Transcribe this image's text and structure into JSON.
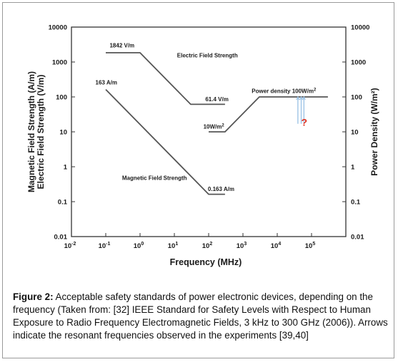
{
  "chart_data": {
    "type": "line",
    "x_scale": "log",
    "y_scale": "log",
    "xlim": [
      0.01,
      1000000
    ],
    "ylim": [
      0.01,
      10000
    ],
    "right_ylim": [
      0.01,
      10000
    ],
    "xlabel": "Frequency (MHz)",
    "ylabel_lines": [
      "Magnetic Field Strength (A/m)",
      "Electric Field Strength (V/m)"
    ],
    "ylabel_right": "Power Density (W/m²)",
    "x_ticks": [
      {
        "value": 0.01,
        "base": "10",
        "exp": "-2"
      },
      {
        "value": 0.1,
        "base": "10",
        "exp": "-1"
      },
      {
        "value": 1,
        "base": "10",
        "exp": "0"
      },
      {
        "value": 10,
        "base": "10",
        "exp": "1"
      },
      {
        "value": 100,
        "base": "10",
        "exp": "2"
      },
      {
        "value": 1000,
        "base": "10",
        "exp": "3"
      },
      {
        "value": 10000,
        "base": "10",
        "exp": "4"
      },
      {
        "value": 100000,
        "base": "10",
        "exp": "5"
      }
    ],
    "y_ticks": [
      {
        "value": 10000,
        "label": "10000"
      },
      {
        "value": 1000,
        "label": "1000"
      },
      {
        "value": 100,
        "label": "100"
      },
      {
        "value": 10,
        "label": "10"
      },
      {
        "value": 1,
        "label": "1"
      },
      {
        "value": 0.1,
        "label": "0.1"
      },
      {
        "value": 0.01,
        "label": "0.01"
      }
    ],
    "series": [
      {
        "name": "Electric Field Strength",
        "points": [
          [
            0.1,
            1842
          ],
          [
            1,
            1842
          ],
          [
            30,
            61.4
          ],
          [
            300,
            61.4
          ]
        ]
      },
      {
        "name": "Magnetic Field Strength",
        "points": [
          [
            0.1,
            163
          ],
          [
            100,
            0.163
          ],
          [
            300,
            0.163
          ]
        ]
      },
      {
        "points": [
          [
            100,
            10
          ],
          [
            300,
            10
          ],
          [
            3000,
            100
          ],
          [
            300000,
            100
          ]
        ]
      }
    ],
    "annotations": [
      {
        "text": "1842 V/m",
        "x": 0.13,
        "y": 2600
      },
      {
        "text": "Electric Field Strength",
        "x": 12,
        "y": 1350
      },
      {
        "text": "61.4 V/m",
        "x": 80,
        "y": 75
      },
      {
        "text": "163 A/m",
        "x": 0.05,
        "y": 230
      },
      {
        "text": "Power density 100W/m²",
        "x": 1800,
        "y": 130
      },
      {
        "text": "10W/m²",
        "x": 70,
        "y": 12.5
      },
      {
        "text": "Magnetic Field Strength",
        "x": 0.3,
        "y": 0.42
      },
      {
        "text": "0.163 A/m",
        "x": 95,
        "y": 0.2
      },
      {
        "text": "?",
        "x": 50000,
        "y": 15
      }
    ],
    "resonance_arrows": [
      {
        "x": 40000,
        "y_from": 100,
        "y_to": 17
      },
      {
        "x": 50000,
        "y_from": 100,
        "y_to": 17
      },
      {
        "x": 60000,
        "y_from": 100,
        "y_to": 17
      }
    ],
    "colors": {
      "line": "#555555",
      "text": "#1a1a1a",
      "arrow": "#9ec4e6",
      "question": "#e03020"
    }
  },
  "caption": {
    "label": "Figure 2:",
    "text": " Acceptable safety standards of power electronic devices, depending on the frequency (Taken from: [32] IEEE Standard for Safety Levels with Respect to Human Exposure to Radio Frequency Electromagnetic Fields, 3 kHz to 300 GHz (2006)). Arrows indicate the resonant frequencies observed in the experiments [39,40]"
  }
}
